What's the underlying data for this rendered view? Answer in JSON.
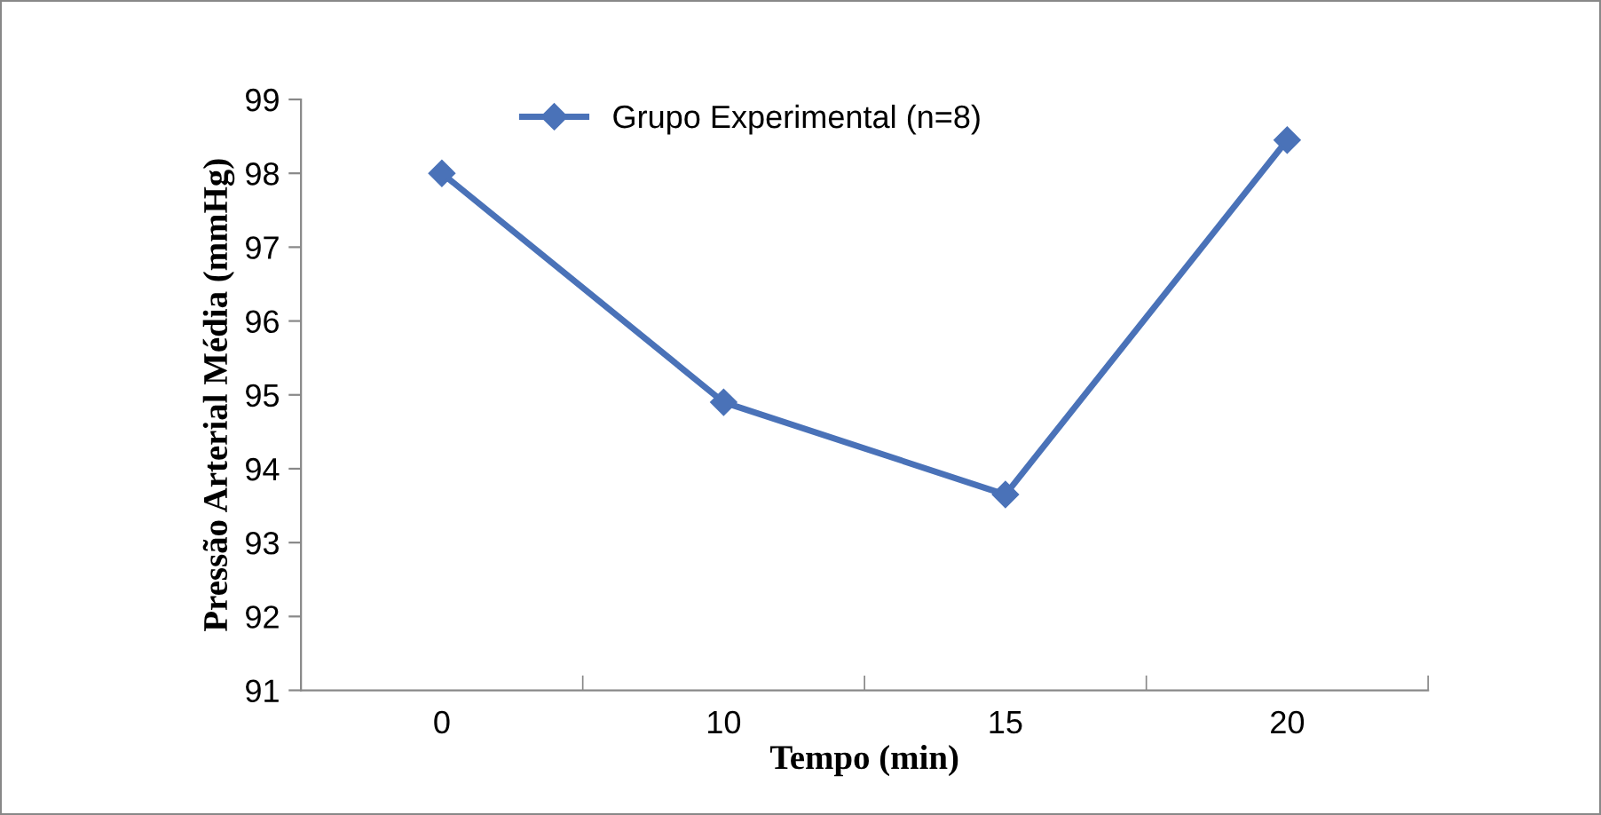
{
  "chart_data": {
    "type": "line",
    "xlabel": "Tempo (min)",
    "ylabel": "Pressão Arterial Média (mmHg)",
    "categories": [
      "0",
      "10",
      "15",
      "20"
    ],
    "series": [
      {
        "name": "Grupo Experimental (n=8)",
        "color": "#4a72b8",
        "values": [
          98.0,
          94.9,
          93.65,
          98.45
        ]
      }
    ],
    "ylim": [
      91,
      99
    ],
    "yticks": [
      91,
      92,
      93,
      94,
      95,
      96,
      97,
      98,
      99
    ],
    "marker": "diamond",
    "line_style": "solid",
    "grid": false,
    "legend": "top"
  }
}
